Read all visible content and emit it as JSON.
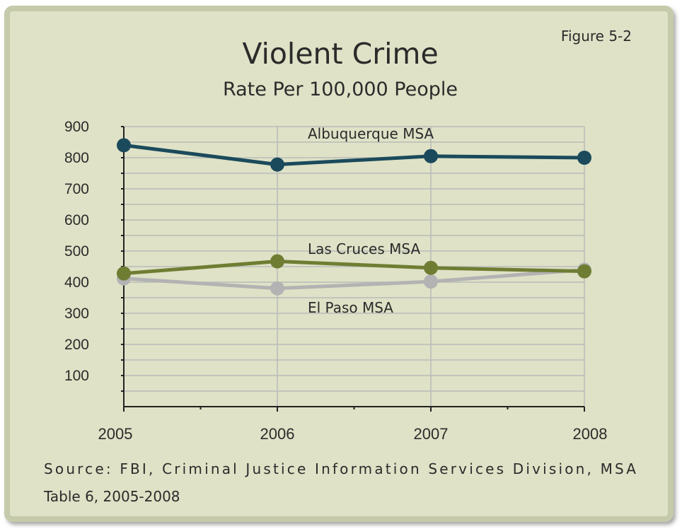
{
  "figure_label": "Figure 5-2",
  "source_line1": "Source: FBI, Criminal Justice Information Services Division, MSA",
  "source_line2": "Table 6, 2005-2008",
  "chart_data": {
    "type": "line",
    "title": "Violent Crime",
    "subtitle": "Rate Per 100,000 People",
    "categories": [
      "2005",
      "2006",
      "2007",
      "2008"
    ],
    "yticks": [
      100,
      200,
      300,
      400,
      500,
      600,
      700,
      800,
      900
    ],
    "ylim": [
      0,
      900
    ],
    "grid": true,
    "series": [
      {
        "name": "Albuquerque MSA",
        "values": [
          840,
          778,
          805,
          800
        ],
        "color": "#1b4a5c"
      },
      {
        "name": "Las Cruces MSA",
        "values": [
          428,
          467,
          446,
          435
        ],
        "color": "#6f7d33"
      },
      {
        "name": "El Paso MSA",
        "values": [
          412,
          380,
          402,
          440
        ],
        "color": "#b3b3b3"
      }
    ]
  }
}
